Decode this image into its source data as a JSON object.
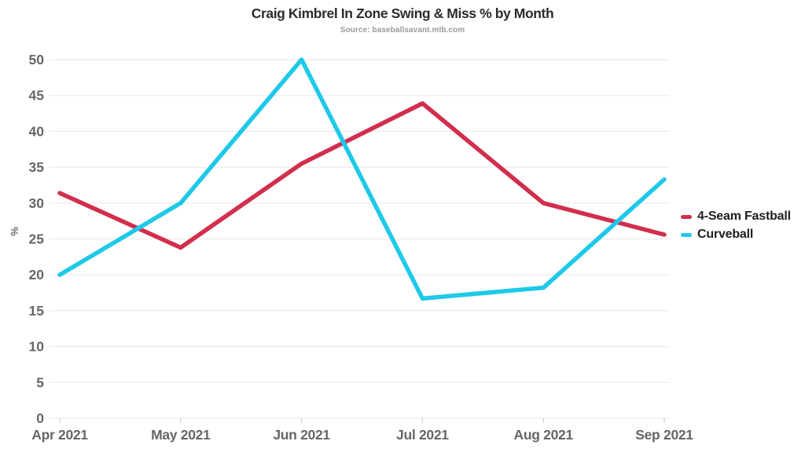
{
  "chart_data": {
    "type": "line",
    "title": "Craig Kimbrel In Zone Swing & Miss % by Month",
    "subtitle": "Source: baseballsavant.mlb.com",
    "categories": [
      "Apr 2021",
      "May 2021",
      "Jun 2021",
      "Jul 2021",
      "Aug 2021",
      "Sep 2021"
    ],
    "series": [
      {
        "name": "4-Seam Fastball",
        "color": "#d22e4d",
        "values": [
          31.4,
          23.8,
          35.5,
          43.9,
          30.0,
          25.6
        ]
      },
      {
        "name": "Curveball",
        "color": "#1ec9e8",
        "values": [
          20.0,
          30.0,
          50.0,
          16.7,
          18.2,
          33.3
        ]
      }
    ],
    "xlabel": "",
    "ylabel": "%",
    "ylim": [
      0,
      50
    ],
    "ytick_step": 5,
    "grid": true,
    "legend_position": "right"
  },
  "theme": {
    "background": "#ffffff",
    "grid_color": "#ececec",
    "axis_label_color": "#666666",
    "tick_mark_color": "#cccccc",
    "title_color": "#2b2b2b",
    "subtitle_color": "#999999",
    "legend_text_color": "#1f1f1f"
  }
}
